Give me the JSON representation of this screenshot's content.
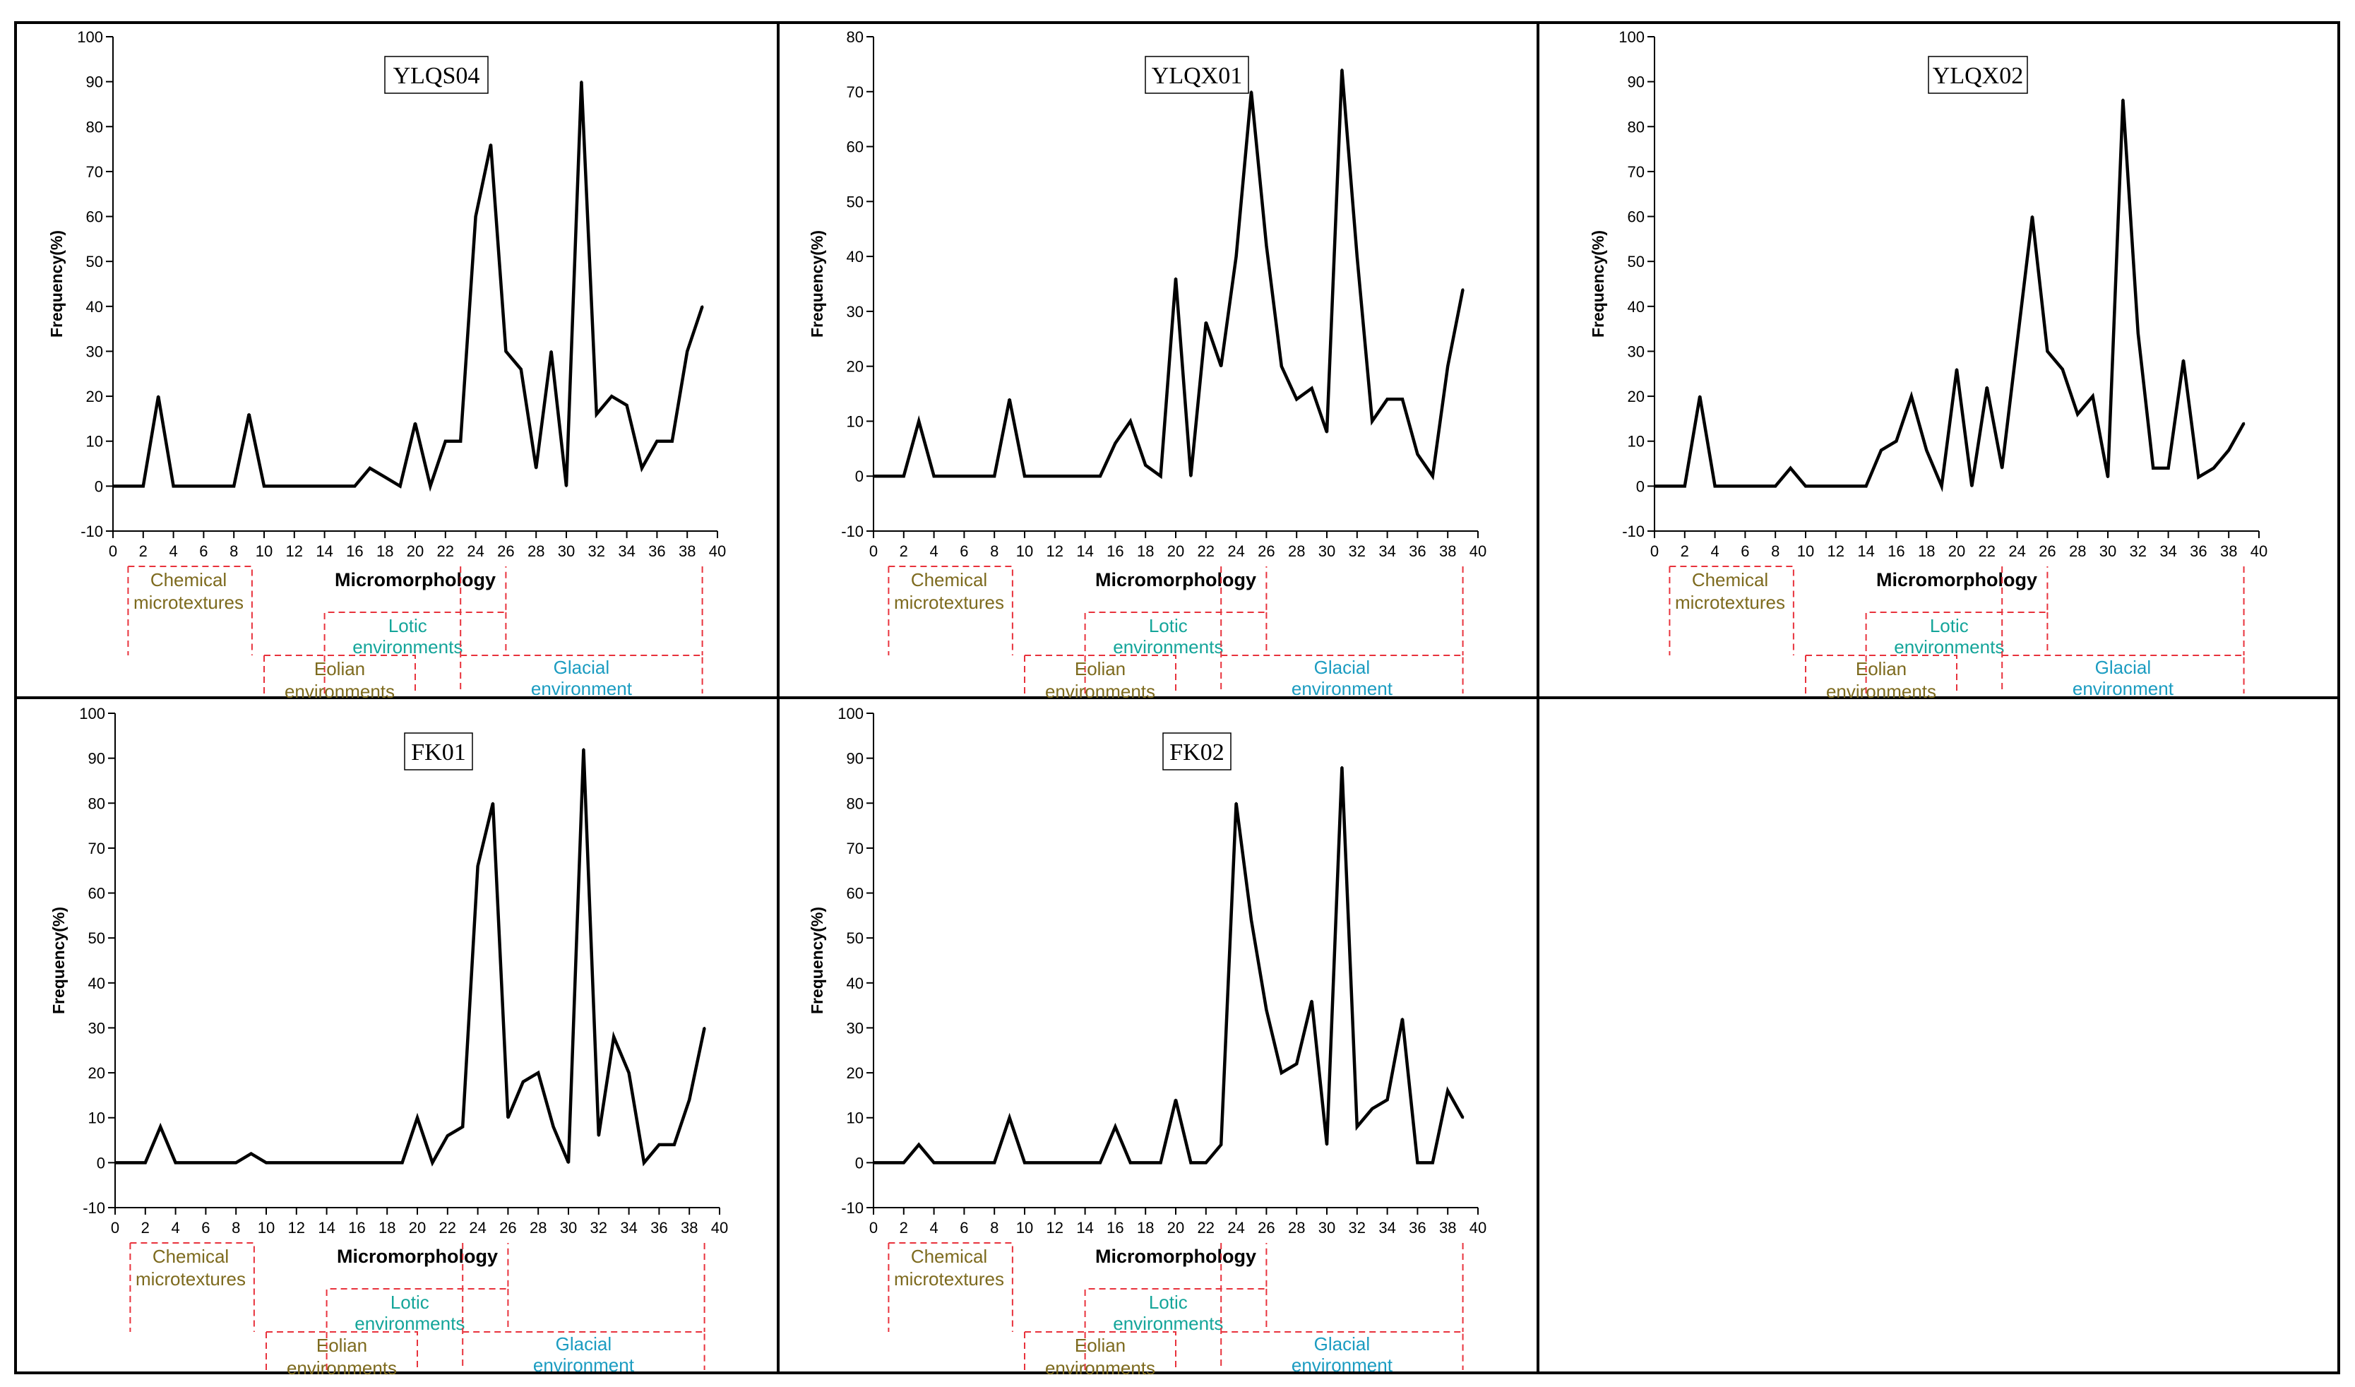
{
  "figure": {
    "xlabel_ticks": [
      "0",
      "2",
      "4",
      "6",
      "8",
      "10",
      "12",
      "14",
      "16",
      "18",
      "20",
      "22",
      "24",
      "26",
      "28",
      "30",
      "32",
      "34",
      "36",
      "38",
      "40"
    ],
    "colors": {
      "line": "#000000",
      "zone_border": "#e8323c",
      "chemical_text": "#7d6a1e",
      "eolian_text": "#7d6a1e",
      "lotic_text": "#14a59a",
      "glacial_text": "#1b9cc1"
    },
    "zones": {
      "chemical": [
        "Chemical",
        "microtextures"
      ],
      "micromorphology": "Micromorphology",
      "lotic": [
        "Lotic",
        "environments"
      ],
      "eolian": [
        "Eolian",
        "environments"
      ],
      "glacial": [
        "Glacial",
        "environment"
      ]
    }
  },
  "chart_data": [
    {
      "type": "line",
      "title": "YLQS04",
      "xlabel": "",
      "ylabel": "Frequency(%)",
      "xlim": [
        0,
        40
      ],
      "ylim": [
        -10,
        100
      ],
      "yticks": [
        -10,
        0,
        10,
        20,
        30,
        40,
        50,
        60,
        70,
        80,
        90,
        100
      ],
      "x": [
        0,
        1,
        2,
        3,
        4,
        5,
        6,
        7,
        8,
        9,
        10,
        11,
        12,
        13,
        14,
        15,
        16,
        17,
        18,
        19,
        20,
        21,
        22,
        23,
        24,
        25,
        26,
        27,
        28,
        29,
        30,
        31,
        32,
        33,
        34,
        35,
        36,
        37,
        38,
        39
      ],
      "y": [
        0,
        0,
        0,
        20,
        0,
        0,
        0,
        0,
        0,
        16,
        0,
        0,
        0,
        0,
        0,
        0,
        0,
        4,
        2,
        0,
        14,
        0,
        10,
        10,
        60,
        76,
        30,
        26,
        4,
        30,
        0,
        90,
        16,
        20,
        18,
        4,
        10,
        10,
        30,
        40
      ]
    },
    {
      "type": "line",
      "title": "YLQX01",
      "xlabel": "",
      "ylabel": "Frequency(%)",
      "xlim": [
        0,
        40
      ],
      "ylim": [
        -10,
        80
      ],
      "yticks": [
        -10,
        0,
        10,
        20,
        30,
        40,
        50,
        60,
        70,
        80
      ],
      "x": [
        0,
        1,
        2,
        3,
        4,
        5,
        6,
        7,
        8,
        9,
        10,
        11,
        12,
        13,
        14,
        15,
        16,
        17,
        18,
        19,
        20,
        21,
        22,
        23,
        24,
        25,
        26,
        27,
        28,
        29,
        30,
        31,
        32,
        33,
        34,
        35,
        36,
        37,
        38,
        39
      ],
      "y": [
        0,
        0,
        0,
        10,
        0,
        0,
        0,
        0,
        0,
        14,
        0,
        0,
        0,
        0,
        0,
        0,
        6,
        10,
        2,
        0,
        36,
        0,
        28,
        20,
        40,
        70,
        42,
        20,
        14,
        16,
        8,
        74,
        40,
        10,
        14,
        14,
        4,
        0,
        20,
        34
      ]
    },
    {
      "type": "line",
      "title": "YLQX02",
      "xlabel": "",
      "ylabel": "Frequency(%)",
      "xlim": [
        0,
        40
      ],
      "ylim": [
        -10,
        100
      ],
      "yticks": [
        -10,
        0,
        10,
        20,
        30,
        40,
        50,
        60,
        70,
        80,
        90,
        100
      ],
      "x": [
        0,
        1,
        2,
        3,
        4,
        5,
        6,
        7,
        8,
        9,
        10,
        11,
        12,
        13,
        14,
        15,
        16,
        17,
        18,
        19,
        20,
        21,
        22,
        23,
        24,
        25,
        26,
        27,
        28,
        29,
        30,
        31,
        32,
        33,
        34,
        35,
        36,
        37,
        38,
        39
      ],
      "y": [
        0,
        0,
        0,
        20,
        0,
        0,
        0,
        0,
        0,
        4,
        0,
        0,
        0,
        0,
        0,
        8,
        10,
        20,
        8,
        0,
        26,
        0,
        22,
        4,
        32,
        60,
        30,
        26,
        16,
        20,
        2,
        86,
        34,
        4,
        4,
        28,
        2,
        4,
        8,
        14
      ]
    },
    {
      "type": "line",
      "title": "FK01",
      "xlabel": "",
      "ylabel": "Frequency(%)",
      "xlim": [
        0,
        40
      ],
      "ylim": [
        -10,
        100
      ],
      "yticks": [
        -10,
        0,
        10,
        20,
        30,
        40,
        50,
        60,
        70,
        80,
        90,
        100
      ],
      "x": [
        0,
        1,
        2,
        3,
        4,
        5,
        6,
        7,
        8,
        9,
        10,
        11,
        12,
        13,
        14,
        15,
        16,
        17,
        18,
        19,
        20,
        21,
        22,
        23,
        24,
        25,
        26,
        27,
        28,
        29,
        30,
        31,
        32,
        33,
        34,
        35,
        36,
        37,
        38,
        39
      ],
      "y": [
        0,
        0,
        0,
        8,
        0,
        0,
        0,
        0,
        0,
        2,
        0,
        0,
        0,
        0,
        0,
        0,
        0,
        0,
        0,
        0,
        10,
        0,
        6,
        8,
        66,
        80,
        10,
        18,
        20,
        8,
        0,
        92,
        6,
        28,
        20,
        0,
        4,
        4,
        14,
        30
      ]
    },
    {
      "type": "line",
      "title": "FK02",
      "xlabel": "",
      "ylabel": "Frequency(%)",
      "xlim": [
        0,
        40
      ],
      "ylim": [
        -10,
        100
      ],
      "yticks": [
        -10,
        0,
        10,
        20,
        30,
        40,
        50,
        60,
        70,
        80,
        90,
        100
      ],
      "x": [
        0,
        1,
        2,
        3,
        4,
        5,
        6,
        7,
        8,
        9,
        10,
        11,
        12,
        13,
        14,
        15,
        16,
        17,
        18,
        19,
        20,
        21,
        22,
        23,
        24,
        25,
        26,
        27,
        28,
        29,
        30,
        31,
        32,
        33,
        34,
        35,
        36,
        37,
        38,
        39
      ],
      "y": [
        0,
        0,
        0,
        4,
        0,
        0,
        0,
        0,
        0,
        10,
        0,
        0,
        0,
        0,
        0,
        0,
        8,
        0,
        0,
        0,
        14,
        0,
        0,
        4,
        80,
        54,
        34,
        20,
        22,
        36,
        4,
        88,
        8,
        12,
        14,
        32,
        0,
        0,
        16,
        10
      ]
    }
  ]
}
